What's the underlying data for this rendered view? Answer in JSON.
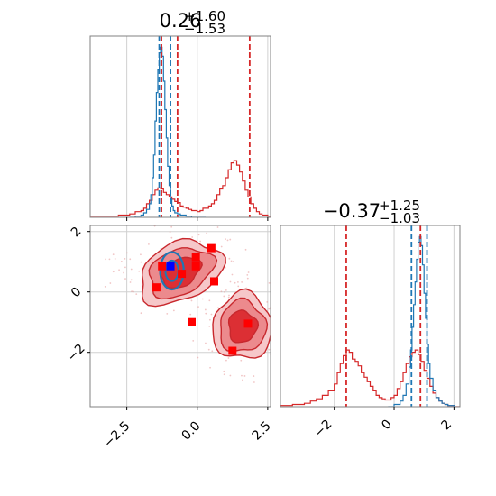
{
  "chart_data": [
    {
      "panel": "marginal-x",
      "type": "line",
      "title": {
        "median": "0.26",
        "upper": "+1.60",
        "lower": "−1.53"
      },
      "xlim": [
        -3.8,
        2.6
      ],
      "series": [
        {
          "color": "#d62728",
          "x": [
            -3.8,
            -3.3,
            -3.0,
            -2.8,
            -2.6,
            -2.4,
            -2.2,
            -2.0,
            -1.9,
            -1.8,
            -1.7,
            -1.6,
            -1.5,
            -1.4,
            -1.3,
            -1.2,
            -1.1,
            -1.0,
            -0.9,
            -0.8,
            -0.7,
            -0.6,
            -0.5,
            -0.4,
            -0.3,
            -0.2,
            -0.1,
            0.0,
            0.1,
            0.2,
            0.3,
            0.4,
            0.5,
            0.6,
            0.7,
            0.8,
            0.9,
            1.0,
            1.1,
            1.2,
            1.3,
            1.4,
            1.5,
            1.6,
            1.7,
            1.8,
            1.9,
            2.0,
            2.1,
            2.2,
            2.3,
            2.5,
            2.6
          ],
          "values": [
            0.01,
            0.01,
            0.01,
            0.02,
            0.02,
            0.03,
            0.05,
            0.06,
            0.08,
            0.12,
            0.15,
            0.2,
            0.24,
            0.26,
            0.25,
            0.22,
            0.2,
            0.18,
            0.16,
            0.14,
            0.13,
            0.1,
            0.09,
            0.08,
            0.07,
            0.06,
            0.06,
            0.05,
            0.06,
            0.08,
            0.08,
            0.1,
            0.12,
            0.15,
            0.2,
            0.25,
            0.28,
            0.35,
            0.42,
            0.48,
            0.5,
            0.46,
            0.4,
            0.32,
            0.24,
            0.18,
            0.12,
            0.08,
            0.05,
            0.03,
            0.02,
            0.01,
            0.01
          ]
        },
        {
          "color": "#1f77b4",
          "x": [
            -2.4,
            -2.2,
            -2.0,
            -1.9,
            -1.8,
            -1.7,
            -1.65,
            -1.6,
            -1.55,
            -1.5,
            -1.45,
            -1.4,
            -1.35,
            -1.3,
            -1.25,
            -1.2,
            -1.15,
            -1.1,
            -1.05,
            -1.0,
            -0.95,
            -0.9,
            -0.85,
            -0.8,
            -0.7,
            -0.6,
            -0.4,
            -0.2,
            0.0,
            0.3
          ],
          "values": [
            0.0,
            0.01,
            0.02,
            0.04,
            0.07,
            0.12,
            0.2,
            0.35,
            0.55,
            0.85,
            1.1,
            1.3,
            1.45,
            1.5,
            1.42,
            1.2,
            0.95,
            0.7,
            0.45,
            0.28,
            0.16,
            0.1,
            0.06,
            0.04,
            0.03,
            0.02,
            0.01,
            0.0,
            0.0,
            0.0
          ]
        }
      ],
      "vlines": [
        {
          "x": -1.27,
          "color": "#d62728"
        },
        {
          "x": 1.86,
          "color": "#d62728"
        },
        {
          "x": -0.7,
          "color": "#d62728"
        },
        {
          "x": -1.35,
          "color": "#1f77b4"
        },
        {
          "x": -0.95,
          "color": "#1f77b4"
        }
      ],
      "grid": true
    },
    {
      "panel": "marginal-y",
      "type": "line",
      "title": {
        "median": "−0.37",
        "upper": "+1.25",
        "lower": "−1.03"
      },
      "xlim": [
        -3.8,
        2.2
      ],
      "xticks": [
        -2,
        0,
        2
      ],
      "xtick_labels": [
        "−2",
        "0",
        "2"
      ],
      "series": [
        {
          "color": "#d62728",
          "x": [
            -3.8,
            -3.4,
            -3.0,
            -2.8,
            -2.6,
            -2.4,
            -2.2,
            -2.0,
            -1.9,
            -1.8,
            -1.7,
            -1.6,
            -1.5,
            -1.4,
            -1.3,
            -1.2,
            -1.1,
            -1.0,
            -0.9,
            -0.8,
            -0.7,
            -0.6,
            -0.5,
            -0.4,
            -0.3,
            -0.2,
            -0.1,
            0.0,
            0.1,
            0.2,
            0.3,
            0.4,
            0.5,
            0.6,
            0.7,
            0.8,
            0.9,
            1.0,
            1.1,
            1.2,
            1.3,
            1.4,
            1.5,
            1.6,
            1.7,
            1.8,
            1.9,
            2.0,
            2.2
          ],
          "values": [
            0.01,
            0.02,
            0.03,
            0.05,
            0.07,
            0.1,
            0.14,
            0.2,
            0.3,
            0.38,
            0.45,
            0.5,
            0.48,
            0.42,
            0.4,
            0.36,
            0.3,
            0.26,
            0.22,
            0.18,
            0.14,
            0.1,
            0.08,
            0.07,
            0.06,
            0.06,
            0.08,
            0.1,
            0.16,
            0.22,
            0.3,
            0.38,
            0.44,
            0.48,
            0.5,
            0.46,
            0.4,
            0.32,
            0.25,
            0.18,
            0.12,
            0.08,
            0.05,
            0.03,
            0.02,
            0.01,
            0.01,
            0.0,
            0.0
          ]
        },
        {
          "color": "#1f77b4",
          "x": [
            -0.2,
            0.0,
            0.2,
            0.3,
            0.4,
            0.5,
            0.55,
            0.6,
            0.65,
            0.7,
            0.75,
            0.8,
            0.85,
            0.9,
            0.95,
            1.0,
            1.05,
            1.1,
            1.15,
            1.2,
            1.3,
            1.4,
            1.5,
            1.6,
            1.7,
            1.8,
            2.0
          ],
          "values": [
            0.0,
            0.02,
            0.05,
            0.1,
            0.2,
            0.35,
            0.5,
            0.7,
            0.9,
            1.1,
            1.3,
            1.45,
            1.5,
            1.42,
            1.25,
            1.0,
            0.78,
            0.55,
            0.38,
            0.25,
            0.14,
            0.08,
            0.05,
            0.03,
            0.02,
            0.01,
            0.0
          ]
        }
      ],
      "vlines": [
        {
          "x": -1.6,
          "color": "#d62728"
        },
        {
          "x": 0.88,
          "color": "#d62728"
        },
        {
          "x": 0.58,
          "color": "#1f77b4"
        },
        {
          "x": 1.1,
          "color": "#1f77b4"
        }
      ],
      "grid": true
    },
    {
      "panel": "joint",
      "type": "scatter",
      "xlim": [
        -3.8,
        2.6
      ],
      "ylim": [
        -3.8,
        2.2
      ],
      "xticks": [
        -2.5,
        0.0,
        2.5
      ],
      "xtick_labels": [
        "−2.5",
        "0.0",
        "2.5"
      ],
      "yticks": [
        -2,
        0,
        2
      ],
      "ytick_labels": [
        "−2",
        "0",
        "2"
      ],
      "red_blobs": [
        {
          "cx": -0.6,
          "cy": 0.65,
          "rx": 1.55,
          "ry": 0.95,
          "rotate_deg": -25
        },
        {
          "cx": 1.6,
          "cy": -1.15,
          "rx": 1.05,
          "ry": 1.1,
          "rotate_deg": 5
        }
      ],
      "blue_contour": {
        "cx": -0.9,
        "cy": 0.7,
        "rx": 0.42,
        "ry": 0.62
      },
      "red_points": [
        {
          "x": -1.25,
          "y": 0.85
        },
        {
          "x": -0.55,
          "y": 0.6
        },
        {
          "x": -0.05,
          "y": 1.15
        },
        {
          "x": 0.5,
          "y": 1.45
        },
        {
          "x": -1.45,
          "y": 0.15
        },
        {
          "x": 0.6,
          "y": 0.35
        },
        {
          "x": -0.2,
          "y": -1.0
        },
        {
          "x": 1.8,
          "y": -1.05
        },
        {
          "x": 1.25,
          "y": -1.95
        },
        {
          "x": -0.05,
          "y": 0.85
        }
      ],
      "blue_points": [
        {
          "x": -0.95,
          "y": 0.85
        }
      ],
      "grid": true
    }
  ]
}
